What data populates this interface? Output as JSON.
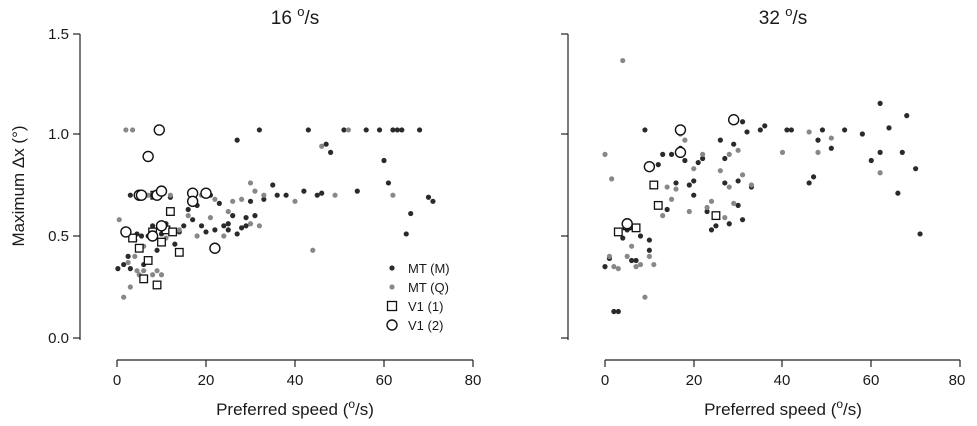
{
  "figure": {
    "ylabel": "Maximum Δx (°)",
    "colors": {
      "MT (M)": "#2a2a2a",
      "MT (Q)": "#888888",
      "V1 (1)": "#111111",
      "V1 (2)": "#111111"
    }
  },
  "chart_data": [
    {
      "type": "scatter",
      "title": "16 °/s",
      "title_value": "16",
      "title_unit": "o",
      "title_suffix": "/s",
      "xlabel": "Preferred speed (°/s)",
      "xlabel_prefix": "Preferred speed (",
      "xlabel_sup": "o",
      "xlabel_suffix": "/s)",
      "ylabel": "Maximum Δx (°)",
      "xlim": [
        0,
        80
      ],
      "ylim": [
        0,
        1.5
      ],
      "xticks": [
        "0",
        "20",
        "40",
        "60",
        "80"
      ],
      "yticks": [
        "0.0",
        "0.5",
        "1.0",
        "1.5"
      ],
      "legend": {
        "placement": "bottom-right",
        "entries": [
          {
            "label": "MT (M)",
            "marker": "filled-dot"
          },
          {
            "label": "MT (Q)",
            "marker": "filled-dot"
          },
          {
            "label": "V1 (1)",
            "marker": "open-square"
          },
          {
            "label": "V1 (2)",
            "marker": "open-circle"
          }
        ]
      },
      "series": [
        {
          "name": "MT (M)",
          "marker": "filled-dot",
          "points": [
            [
              0.2,
              0.34
            ],
            [
              1.5,
              0.36
            ],
            [
              2.5,
              0.4
            ],
            [
              3,
              0.34
            ],
            [
              4,
              0.48
            ],
            [
              4.5,
              0.51
            ],
            [
              5.5,
              0.5
            ],
            [
              6,
              0.36
            ],
            [
              7,
              0.5
            ],
            [
              8,
              0.55
            ],
            [
              9,
              0.43
            ],
            [
              10,
              0.51
            ],
            [
              11,
              0.56
            ],
            [
              12,
              0.69
            ],
            [
              13,
              0.46
            ],
            [
              14,
              0.52
            ],
            [
              15,
              0.55
            ],
            [
              16,
              0.63
            ],
            [
              18,
              0.65
            ],
            [
              19,
              0.55
            ],
            [
              20,
              0.52
            ],
            [
              21,
              0.7
            ],
            [
              22,
              0.53
            ],
            [
              23,
              0.66
            ],
            [
              24,
              0.55
            ],
            [
              25,
              0.56
            ],
            [
              26,
              0.6
            ],
            [
              27,
              0.97
            ],
            [
              28,
              0.54
            ],
            [
              29,
              0.59
            ],
            [
              30,
              0.67
            ],
            [
              31,
              0.6
            ],
            [
              32,
              1.02
            ],
            [
              33,
              0.68
            ],
            [
              35,
              0.75
            ],
            [
              36,
              0.7
            ],
            [
              38,
              0.7
            ],
            [
              42,
              0.72
            ],
            [
              43,
              1.02
            ],
            [
              45,
              0.7
            ],
            [
              46,
              0.71
            ],
            [
              47,
              0.95
            ],
            [
              48,
              0.91
            ],
            [
              51,
              1.02
            ],
            [
              54,
              0.72
            ],
            [
              56,
              1.02
            ],
            [
              59,
              1.02
            ],
            [
              60,
              0.87
            ],
            [
              61,
              0.76
            ],
            [
              62,
              1.02
            ],
            [
              63,
              1.02
            ],
            [
              64,
              1.02
            ],
            [
              65,
              0.51
            ],
            [
              66,
              0.61
            ],
            [
              68,
              1.02
            ],
            [
              70,
              0.69
            ],
            [
              71,
              0.67
            ],
            [
              3,
              0.7
            ],
            [
              9,
              0.7
            ],
            [
              12,
              0.52
            ],
            [
              17,
              0.58
            ],
            [
              25,
              0.53
            ],
            [
              27,
              0.51
            ],
            [
              29,
              0.55
            ]
          ]
        },
        {
          "name": "MT (Q)",
          "marker": "filled-dot",
          "points": [
            [
              0.5,
              0.58
            ],
            [
              1.5,
              0.2
            ],
            [
              2,
              1.02
            ],
            [
              3,
              0.25
            ],
            [
              3.5,
              1.02
            ],
            [
              4,
              0.4
            ],
            [
              4.5,
              0.33
            ],
            [
              5,
              0.31
            ],
            [
              6,
              0.33
            ],
            [
              7,
              0.7
            ],
            [
              8,
              0.31
            ],
            [
              9,
              0.33
            ],
            [
              10,
              0.31
            ],
            [
              11,
              0.49
            ],
            [
              12,
              0.7
            ],
            [
              14,
              0.53
            ],
            [
              16,
              0.6
            ],
            [
              18,
              0.5
            ],
            [
              19,
              0.7
            ],
            [
              20,
              0.7
            ],
            [
              21,
              0.59
            ],
            [
              22,
              0.68
            ],
            [
              24,
              0.5
            ],
            [
              26,
              0.67
            ],
            [
              28,
              0.68
            ],
            [
              30,
              0.76
            ],
            [
              31,
              0.72
            ],
            [
              33,
              0.7
            ],
            [
              40,
              0.67
            ],
            [
              44,
              0.43
            ],
            [
              46,
              0.94
            ],
            [
              49,
              0.7
            ],
            [
              52,
              1.02
            ],
            [
              62,
              0.7
            ],
            [
              2.5,
              0.37
            ],
            [
              6,
              0.45
            ],
            [
              13,
              0.52
            ],
            [
              25,
              0.62
            ],
            [
              30,
              0.56
            ],
            [
              32,
              0.55
            ]
          ]
        },
        {
          "name": "V1 (1)",
          "marker": "open-square",
          "points": [
            [
              3.5,
              0.49
            ],
            [
              5,
              0.44
            ],
            [
              6,
              0.29
            ],
            [
              7,
              0.38
            ],
            [
              8,
              0.52
            ],
            [
              9,
              0.26
            ],
            [
              10,
              0.47
            ],
            [
              11,
              0.53
            ],
            [
              12,
              0.62
            ],
            [
              12.5,
              0.52
            ],
            [
              14,
              0.42
            ],
            [
              8.5,
              0.7
            ]
          ]
        },
        {
          "name": "V1 (2)",
          "marker": "open-circle",
          "points": [
            [
              2,
              0.52
            ],
            [
              5,
              0.7
            ],
            [
              5.5,
              0.7
            ],
            [
              7,
              0.89
            ],
            [
              8,
              0.5
            ],
            [
              9,
              0.7
            ],
            [
              9.5,
              1.02
            ],
            [
              10,
              0.72
            ],
            [
              10,
              0.55
            ],
            [
              17,
              0.71
            ],
            [
              17,
              0.67
            ],
            [
              20,
              0.71
            ],
            [
              22,
              0.44
            ]
          ]
        }
      ]
    },
    {
      "type": "scatter",
      "title": "32 °/s",
      "title_value": "32",
      "title_unit": "o",
      "title_suffix": "/s",
      "xlabel": "Preferred speed (°/s)",
      "xlabel_prefix": "Preferred speed (",
      "xlabel_sup": "o",
      "xlabel_suffix": "/s)",
      "xlim": [
        0,
        80
      ],
      "ylim": [
        0,
        1.5
      ],
      "xticks": [
        "0",
        "20",
        "40",
        "60",
        "80"
      ],
      "series": [
        {
          "name": "MT (M)",
          "marker": "filled-dot",
          "points": [
            [
              0,
              0.35
            ],
            [
              1,
              0.39
            ],
            [
              2,
              0.13
            ],
            [
              3,
              0.13
            ],
            [
              3,
              0.52
            ],
            [
              4,
              0.49
            ],
            [
              5,
              0.53
            ],
            [
              6,
              0.38
            ],
            [
              7,
              0.38
            ],
            [
              8,
              0.5
            ],
            [
              9,
              1.02
            ],
            [
              10,
              0.48
            ],
            [
              10,
              0.43
            ],
            [
              11,
              0.75
            ],
            [
              12,
              0.85
            ],
            [
              13,
              0.9
            ],
            [
              14,
              0.63
            ],
            [
              15,
              0.9
            ],
            [
              16,
              0.76
            ],
            [
              17,
              0.93
            ],
            [
              18,
              0.87
            ],
            [
              19,
              0.75
            ],
            [
              20,
              0.7
            ],
            [
              21,
              0.86
            ],
            [
              22,
              0.88
            ],
            [
              23,
              0.62
            ],
            [
              24,
              0.53
            ],
            [
              25,
              0.55
            ],
            [
              26,
              0.97
            ],
            [
              27,
              0.88
            ],
            [
              28,
              0.56
            ],
            [
              29,
              0.95
            ],
            [
              30,
              0.65
            ],
            [
              31,
              1.06
            ],
            [
              31,
              0.58
            ],
            [
              32,
              1.01
            ],
            [
              33,
              0.74
            ],
            [
              35,
              1.02
            ],
            [
              36,
              1.04
            ],
            [
              41,
              1.02
            ],
            [
              42,
              1.02
            ],
            [
              46,
              0.76
            ],
            [
              47,
              0.79
            ],
            [
              48,
              0.97
            ],
            [
              49,
              1.02
            ],
            [
              51,
              0.93
            ],
            [
              54,
              1.02
            ],
            [
              58,
              1.0
            ],
            [
              60,
              0.87
            ],
            [
              62,
              0.91
            ],
            [
              62,
              1.15
            ],
            [
              64,
              1.03
            ],
            [
              66,
              0.71
            ],
            [
              67,
              0.91
            ],
            [
              68,
              1.09
            ],
            [
              70,
              0.83
            ],
            [
              71,
              0.51
            ],
            [
              20,
              0.77
            ],
            [
              27,
              0.76
            ],
            [
              30,
              0.77
            ]
          ]
        },
        {
          "name": "MT (Q)",
          "marker": "filled-dot",
          "points": [
            [
              0,
              0.9
            ],
            [
              1,
              0.4
            ],
            [
              1.5,
              0.78
            ],
            [
              2,
              0.35
            ],
            [
              3,
              0.34
            ],
            [
              4,
              1.36
            ],
            [
              5,
              0.4
            ],
            [
              6,
              0.45
            ],
            [
              7,
              0.35
            ],
            [
              8,
              0.36
            ],
            [
              9,
              0.2
            ],
            [
              10,
              0.4
            ],
            [
              11,
              0.36
            ],
            [
              13,
              0.6
            ],
            [
              15,
              0.68
            ],
            [
              16,
              0.73
            ],
            [
              17,
              1.0
            ],
            [
              18,
              0.97
            ],
            [
              19,
              0.62
            ],
            [
              20,
              0.83
            ],
            [
              22,
              0.9
            ],
            [
              24,
              0.67
            ],
            [
              26,
              0.82
            ],
            [
              27,
              0.59
            ],
            [
              28,
              0.9
            ],
            [
              29,
              0.66
            ],
            [
              30,
              0.92
            ],
            [
              31,
              0.8
            ],
            [
              33,
              0.75
            ],
            [
              40,
              0.91
            ],
            [
              46,
              1.01
            ],
            [
              48,
              0.91
            ],
            [
              51,
              0.98
            ],
            [
              62,
              0.81
            ],
            [
              14,
              0.74
            ],
            [
              23,
              0.64
            ],
            [
              28,
              0.74
            ]
          ]
        },
        {
          "name": "V1 (1)",
          "marker": "open-square",
          "points": [
            [
              3,
              0.52
            ],
            [
              5,
              0.55
            ],
            [
              7,
              0.54
            ],
            [
              11,
              0.75
            ],
            [
              12,
              0.65
            ],
            [
              25,
              0.6
            ]
          ]
        },
        {
          "name": "V1 (2)",
          "marker": "open-circle",
          "points": [
            [
              5,
              0.56
            ],
            [
              10,
              0.84
            ],
            [
              17,
              0.91
            ],
            [
              17,
              1.02
            ],
            [
              29,
              1.07
            ]
          ]
        }
      ]
    }
  ]
}
